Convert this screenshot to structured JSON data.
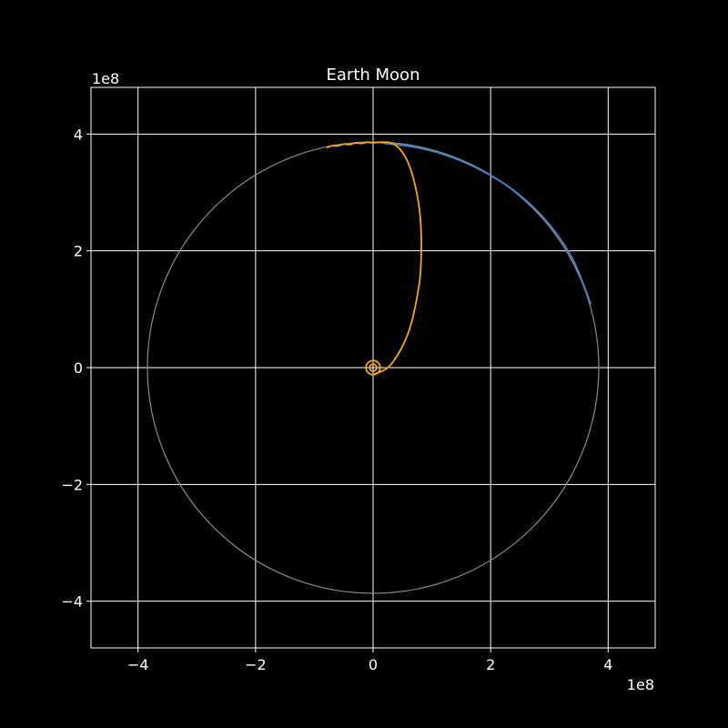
{
  "chart_data": {
    "type": "line",
    "title": "Earth Moon",
    "xlabel": "",
    "ylabel": "",
    "x_offset_label": "1e8",
    "y_offset_label": "1e8",
    "xlim": [
      -4.8,
      4.8
    ],
    "ylim": [
      -4.8,
      4.8
    ],
    "xticks": [
      -4,
      -2,
      0,
      2,
      4
    ],
    "yticks": [
      -4,
      -2,
      0,
      2,
      4
    ],
    "xtick_labels": [
      "−4",
      "−2",
      "0",
      "2",
      "4"
    ],
    "ytick_labels": [
      "−4",
      "−2",
      "0",
      "2",
      "4"
    ],
    "grid": true,
    "legend": "none",
    "colors": {
      "background": "#000000",
      "grid": "#ffffff",
      "reference_orbit": "#8a8a8a",
      "moon_path": "#4a86c0",
      "spacecraft_path": "#f5a623"
    },
    "series": [
      {
        "role": "reference_orbit",
        "x": [
          3.84,
          3.652,
          3.107,
          2.257,
          1.187,
          0.0,
          -1.187,
          -2.257,
          -3.107,
          -3.652,
          -3.84,
          -3.652,
          -3.107,
          -2.257,
          -1.187,
          0.0,
          1.187,
          2.257,
          3.107,
          3.652,
          3.84
        ],
        "y": [
          0.0,
          1.187,
          2.257,
          3.107,
          3.652,
          3.84,
          3.652,
          3.107,
          2.257,
          1.187,
          0.0,
          -1.187,
          -2.257,
          -3.107,
          -3.652,
          -3.84,
          -3.652,
          -3.107,
          -2.257,
          -1.187,
          0.0
        ]
      },
      {
        "role": "moon_path",
        "x": [
          0.2,
          0.75,
          1.35,
          1.95,
          2.5,
          3.0,
          3.4,
          3.7
        ],
        "y": [
          3.84,
          3.77,
          3.6,
          3.32,
          2.95,
          2.45,
          1.85,
          1.1
        ]
      },
      {
        "role": "spacecraft_path",
        "x": [
          0.0,
          0.3,
          0.6,
          0.78,
          0.82,
          0.8,
          0.72,
          0.6,
          0.45,
          0.3,
          0.2,
          0.15
        ],
        "y": [
          -0.12,
          0.05,
          0.6,
          1.4,
          2.0,
          2.6,
          3.1,
          3.5,
          3.75,
          3.85,
          3.86,
          3.85
        ]
      },
      {
        "role": "spacecraft_path",
        "x": [
          0.2,
          0.1,
          0.0,
          -0.1,
          -0.2,
          -0.3,
          -0.4,
          -0.5,
          -0.6,
          -0.7,
          -0.78
        ],
        "y": [
          3.86,
          3.86,
          3.85,
          3.86,
          3.84,
          3.85,
          3.82,
          3.83,
          3.8,
          3.8,
          3.77
        ]
      }
    ],
    "markers": [
      {
        "role": "spacecraft_path",
        "shape": "ring",
        "x": 0.0,
        "y": 0.0,
        "r": 0.12
      },
      {
        "role": "spacecraft_path",
        "shape": "ring",
        "x": 0.0,
        "y": 0.0,
        "r": 0.06
      }
    ]
  }
}
